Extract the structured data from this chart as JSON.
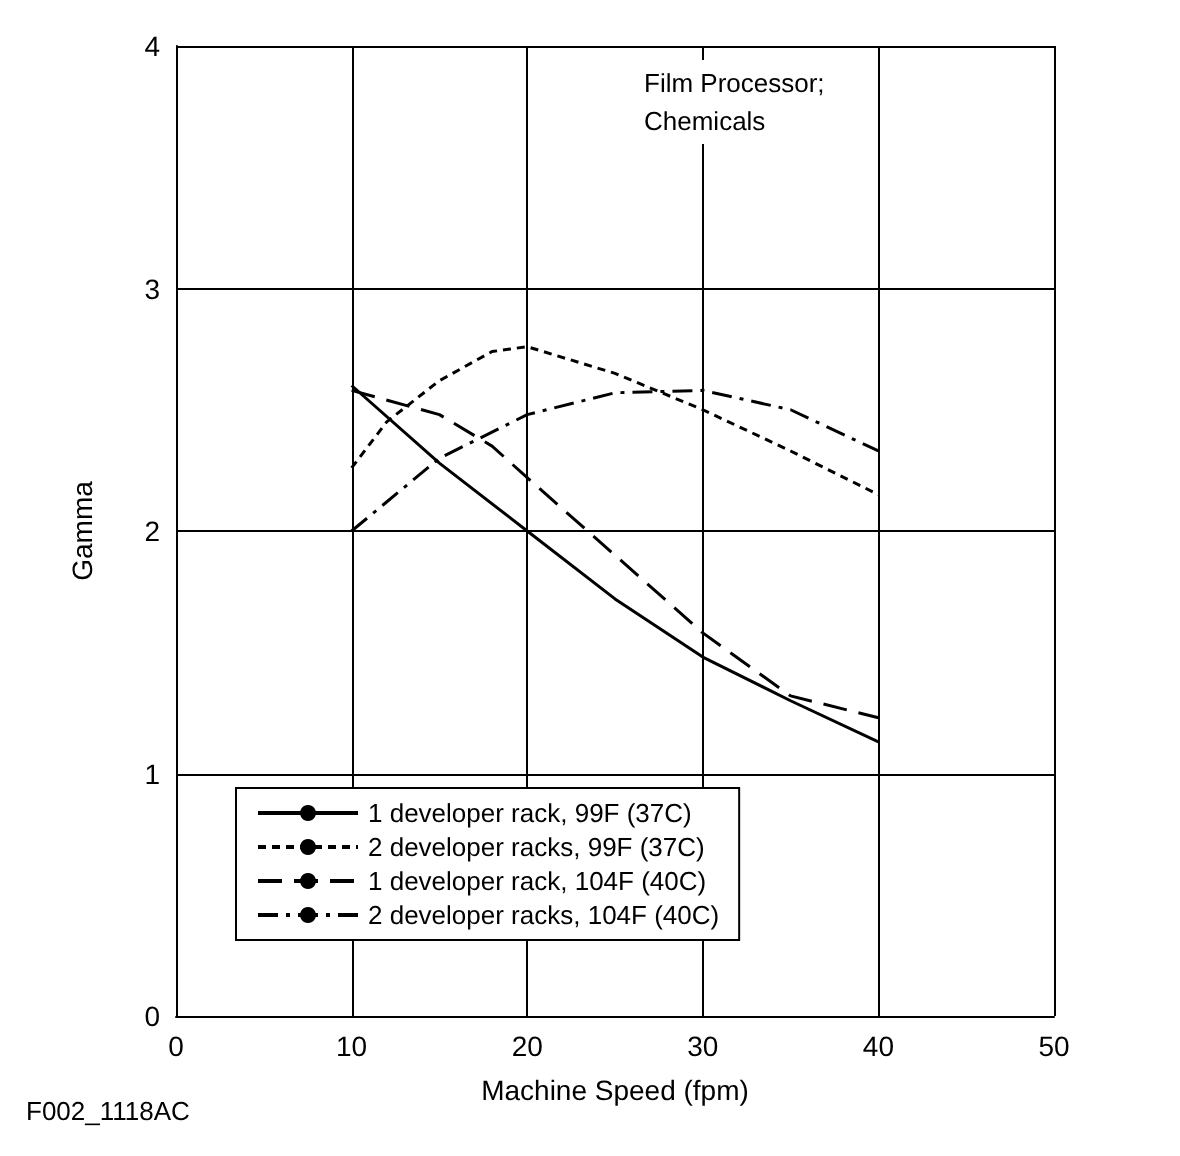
{
  "chart_data": {
    "type": "line",
    "xlabel": "Machine Speed (fpm)",
    "ylabel": "Gamma",
    "xlim": [
      0,
      50
    ],
    "xticks": [
      0,
      10,
      20,
      30,
      40,
      50
    ],
    "ylim": [
      0,
      4
    ],
    "yticks": [
      0,
      1,
      2,
      3,
      4
    ],
    "grid": true,
    "legend": "bottom left",
    "marker": "none",
    "annotations": [
      "Film Processor;\nChemicals",
      "F002_1118AC"
    ],
    "series": [
      {
        "name": "1 developer rack, 99F (37C)",
        "color": "#000000",
        "line_style": "solid",
        "x": [
          10,
          15,
          20,
          25,
          30,
          35,
          40
        ],
        "values": [
          2.6,
          2.28,
          2.0,
          1.72,
          1.48,
          1.3,
          1.13
        ]
      },
      {
        "name": "2 developer racks, 99F (37C)",
        "color": "#000000",
        "line_style": "dotted",
        "x": [
          10,
          12,
          15,
          18,
          20,
          25,
          30,
          35,
          40
        ],
        "values": [
          2.26,
          2.45,
          2.62,
          2.74,
          2.76,
          2.65,
          2.5,
          2.33,
          2.15
        ]
      },
      {
        "name": "1 developer rack, 104F (40C)",
        "color": "#000000",
        "line_style": "dashed",
        "x": [
          10,
          15,
          18,
          20,
          25,
          30,
          35,
          40
        ],
        "values": [
          2.58,
          2.48,
          2.35,
          2.22,
          1.9,
          1.58,
          1.32,
          1.23
        ]
      },
      {
        "name": "2 developer racks, 104F (40C)",
        "color": "#000000",
        "line_style": "dashdot",
        "x": [
          10,
          15,
          20,
          25,
          30,
          35,
          40
        ],
        "values": [
          2.0,
          2.3,
          2.48,
          2.57,
          2.58,
          2.5,
          2.33
        ]
      }
    ]
  }
}
